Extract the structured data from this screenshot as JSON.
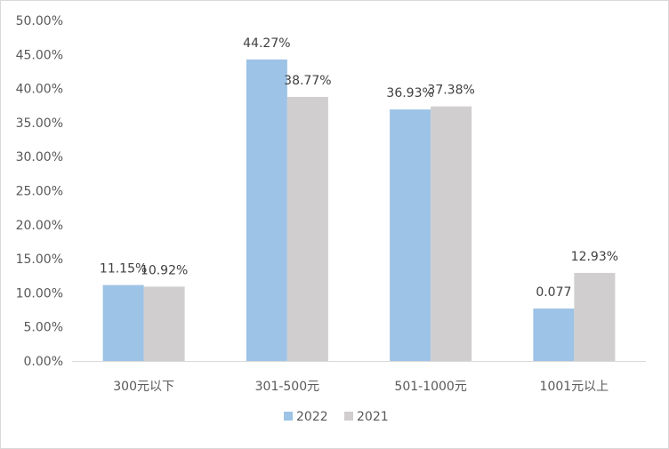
{
  "chart_data": {
    "type": "bar",
    "categories": [
      "300元以下",
      "301-500元",
      "501-1000元",
      "1001元以上"
    ],
    "series": [
      {
        "name": "2022",
        "color": "#9dc3e6",
        "values": [
          0.1115,
          0.4427,
          0.3693,
          0.077
        ],
        "labels": [
          "11.15%",
          "44.27%",
          "36.93%",
          "0.077"
        ]
      },
      {
        "name": "2021",
        "color": "#d0cece",
        "values": [
          0.1092,
          0.3877,
          0.3738,
          0.1293
        ],
        "labels": [
          "10.92%",
          "38.77%",
          "37.38%",
          "12.93%"
        ]
      }
    ],
    "yticks": [
      "0.00%",
      "5.00%",
      "10.00%",
      "15.00%",
      "20.00%",
      "25.00%",
      "30.00%",
      "35.00%",
      "40.00%",
      "45.00%",
      "50.00%"
    ],
    "ylim": [
      0,
      0.5
    ],
    "grid": false,
    "legend_position": "bottom"
  }
}
